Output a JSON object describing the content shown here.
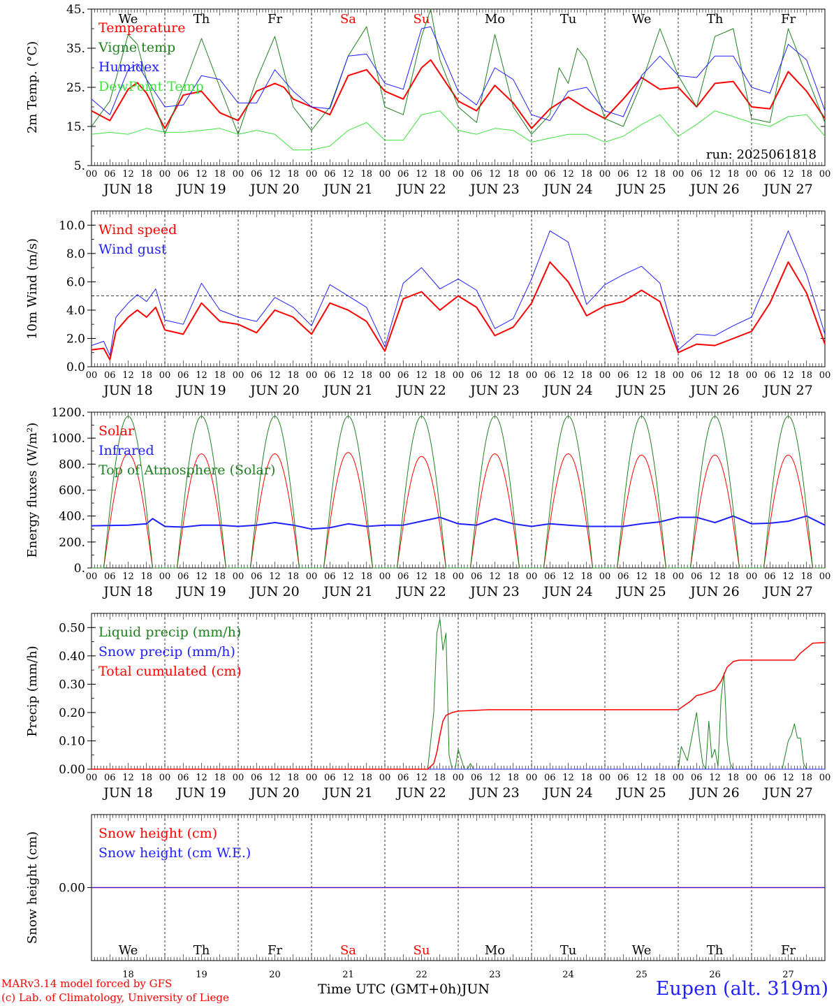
{
  "footer": {
    "credit_line1": "MARv3.14 model forced by GFS",
    "credit_line2": "(c) Lab. of Climatology, University of Liege",
    "x_title": "Time UTC (GMT+0h)",
    "x_title_month": "JUN",
    "station": "Eupen (alt. 319m)"
  },
  "chart_data": [
    {
      "id": "temperature",
      "type": "line",
      "ylabel": "2m Temp. (°C)",
      "ylim": [
        5,
        45
      ],
      "yticks": [
        5,
        15,
        25,
        35,
        45
      ],
      "ytick_labels": [
        "5.",
        "15.",
        "25.",
        "35.",
        "45."
      ],
      "weekday_labels": [
        "We",
        "Th",
        "Fr",
        "Sa",
        "Su",
        "Mo",
        "Tu",
        "We",
        "Th",
        "Fr"
      ],
      "weekday_colors": [
        "#000000",
        "#000000",
        "#000000",
        "#ff0000",
        "#ff0000",
        "#000000",
        "#000000",
        "#000000",
        "#000000",
        "#000000"
      ],
      "run_label": "run: 2025061818",
      "x_unit": "hours since JUN 18 00 UTC",
      "series": [
        {
          "name": "Temperature",
          "color": "#ff0000",
          "width": 2,
          "x": [
            0,
            6,
            12,
            15,
            18,
            24,
            30,
            36,
            42,
            48,
            54,
            60,
            63,
            66,
            72,
            78,
            84,
            90,
            96,
            102,
            108,
            111,
            114,
            120,
            126,
            132,
            138,
            144,
            150,
            156,
            162,
            168,
            174,
            180,
            186,
            192,
            198,
            204,
            210,
            216,
            222,
            228,
            234,
            240
          ],
          "y": [
            19,
            16.5,
            24.5,
            26.2,
            23.5,
            14.5,
            23,
            24,
            18.5,
            16.5,
            24,
            26,
            25,
            22,
            20,
            18,
            28,
            29.5,
            24,
            22,
            30,
            32,
            28.5,
            21.5,
            19,
            25.5,
            21,
            14.5,
            19.5,
            22.5,
            19.5,
            17,
            22,
            27.5,
            24.5,
            25,
            20,
            26,
            26.5,
            20,
            19.5,
            29,
            24,
            17
          ]
        },
        {
          "name": "Vigne temp",
          "color": "#208020",
          "width": 1,
          "x": [
            0,
            6,
            12,
            15,
            18,
            24,
            30,
            36,
            42,
            48,
            54,
            60,
            66,
            72,
            78,
            84,
            90,
            96,
            102,
            108,
            111,
            114,
            120,
            126,
            132,
            138,
            144,
            150,
            153,
            156,
            159,
            162,
            168,
            174,
            180,
            186,
            192,
            198,
            204,
            210,
            216,
            222,
            228,
            234,
            240
          ],
          "y": [
            15,
            21.5,
            38.5,
            36,
            27,
            13,
            25,
            37.5,
            25,
            13,
            27,
            38,
            20,
            14,
            20,
            33,
            40.5,
            20,
            18,
            38,
            45,
            32,
            20,
            16,
            38.5,
            20,
            13,
            18,
            30,
            26,
            35,
            32,
            17,
            15,
            26,
            40,
            28,
            20,
            38,
            40,
            17,
            16,
            40,
            28,
            16
          ]
        },
        {
          "name": "Humidex",
          "color": "#2020ff",
          "width": 1,
          "x": [
            0,
            6,
            12,
            15,
            18,
            24,
            30,
            36,
            42,
            48,
            54,
            60,
            66,
            72,
            78,
            84,
            90,
            96,
            102,
            108,
            111,
            114,
            120,
            126,
            132,
            138,
            144,
            150,
            156,
            162,
            168,
            174,
            180,
            186,
            192,
            198,
            204,
            210,
            216,
            222,
            228,
            234,
            240
          ],
          "y": [
            22,
            18,
            29.5,
            31,
            27,
            20,
            20.5,
            28,
            27,
            21,
            21,
            29.5,
            24,
            20,
            19.5,
            33,
            33.5,
            26,
            24.5,
            40,
            40.5,
            35,
            24,
            20.5,
            30,
            27,
            18,
            16.5,
            24,
            25,
            19,
            17.5,
            28,
            33,
            28,
            27.5,
            33,
            33,
            25,
            23.5,
            36,
            32,
            19
          ]
        },
        {
          "name": "DewPoint Temp",
          "color": "#40e040",
          "width": 1,
          "x": [
            0,
            6,
            12,
            18,
            24,
            30,
            36,
            42,
            48,
            54,
            60,
            66,
            72,
            78,
            84,
            90,
            96,
            102,
            108,
            114,
            120,
            126,
            132,
            138,
            144,
            150,
            156,
            162,
            168,
            174,
            180,
            186,
            192,
            198,
            204,
            210,
            216,
            222,
            228,
            234,
            240
          ],
          "y": [
            13,
            13.5,
            13,
            14.5,
            13.5,
            13.5,
            14,
            14.5,
            13,
            14,
            13,
            9,
            9,
            10,
            14,
            16,
            11.5,
            11.5,
            18,
            19,
            14,
            13,
            14.5,
            14,
            11,
            12,
            13,
            13,
            11,
            12.5,
            15.5,
            18,
            12.5,
            15.5,
            19,
            17.5,
            16,
            15,
            17.5,
            18,
            12.5
          ]
        }
      ]
    },
    {
      "id": "wind",
      "type": "line",
      "ylabel": "10m Wind (m/s)",
      "ylim": [
        0,
        11
      ],
      "yticks": [
        0,
        2,
        4,
        6,
        8,
        10
      ],
      "ytick_labels": [
        "0.0",
        "2.0",
        "4.0",
        "6.0",
        "8.0",
        "10.0"
      ],
      "hline": 5,
      "x_unit": "hours since JUN 18 00 UTC",
      "series": [
        {
          "name": "Wind speed",
          "color": "#ff0000",
          "width": 2,
          "x": [
            0,
            4,
            6,
            8,
            12,
            15,
            18,
            21,
            24,
            30,
            36,
            42,
            48,
            54,
            60,
            66,
            72,
            78,
            84,
            90,
            96,
            102,
            108,
            114,
            120,
            126,
            132,
            138,
            144,
            150,
            156,
            162,
            168,
            174,
            180,
            186,
            192,
            198,
            204,
            210,
            216,
            222,
            228,
            234,
            240
          ],
          "y": [
            1.2,
            1.3,
            0.5,
            2.5,
            3.5,
            4,
            3.5,
            4.2,
            2.6,
            2.3,
            4.5,
            3.2,
            3,
            2.4,
            4,
            3.5,
            2.3,
            4.5,
            4,
            3.2,
            1.1,
            4.8,
            5.3,
            4,
            5,
            4.2,
            2.2,
            2.8,
            4.5,
            7.4,
            6,
            3.6,
            4.3,
            4.6,
            5.4,
            4.6,
            1,
            1.6,
            1.5,
            2,
            2.5,
            4.5,
            7.4,
            5.2,
            1.6
          ]
        },
        {
          "name": "Wind gust",
          "color": "#2020ff",
          "width": 1,
          "x": [
            0,
            4,
            6,
            8,
            12,
            15,
            18,
            21,
            24,
            30,
            36,
            42,
            48,
            54,
            60,
            66,
            72,
            78,
            84,
            90,
            96,
            102,
            108,
            114,
            120,
            126,
            132,
            138,
            144,
            150,
            156,
            162,
            168,
            174,
            180,
            186,
            192,
            198,
            204,
            210,
            216,
            222,
            228,
            234,
            240
          ],
          "y": [
            1.5,
            1.8,
            0.8,
            3.5,
            4.5,
            5.1,
            4.6,
            5.5,
            3.3,
            3,
            5.9,
            4,
            3.5,
            3.2,
            4.9,
            4.2,
            2.9,
            5.8,
            5,
            4.2,
            1.4,
            5.9,
            7,
            5.5,
            6.2,
            5.4,
            2.7,
            3.4,
            6.2,
            9.6,
            8.8,
            4.4,
            5.8,
            6.5,
            7.1,
            5.9,
            1.2,
            2.3,
            2.2,
            2.9,
            3.5,
            6.5,
            9.6,
            6.5,
            2.3
          ]
        }
      ]
    },
    {
      "id": "energy",
      "type": "line",
      "ylabel": "Energy fluxes (W/m²)",
      "ylim": [
        0,
        1200
      ],
      "yticks": [
        0,
        200,
        400,
        600,
        800,
        1000,
        1200
      ],
      "ytick_labels": [
        "0.",
        "200.",
        "400.",
        "600.",
        "800.",
        "1000.",
        "1200."
      ],
      "x_unit": "hours since JUN 18 00 UTC",
      "diurnal_peak_hour": 12,
      "diurnal_half_width_hours": 8,
      "series": [
        {
          "name": "Solar",
          "color": "#ff0000",
          "width": 1,
          "daily_peaks": [
            880,
            880,
            880,
            890,
            860,
            880,
            880,
            870,
            870,
            870
          ]
        },
        {
          "name": "Infrared",
          "color": "#2020ff",
          "width": 2,
          "x": [
            0,
            12,
            18,
            20,
            24,
            30,
            36,
            42,
            48,
            54,
            60,
            66,
            72,
            78,
            84,
            90,
            96,
            102,
            108,
            114,
            120,
            126,
            132,
            138,
            144,
            150,
            156,
            162,
            168,
            174,
            180,
            186,
            192,
            198,
            204,
            210,
            216,
            222,
            228,
            234,
            240
          ],
          "y": [
            325,
            330,
            340,
            380,
            320,
            315,
            330,
            330,
            320,
            330,
            350,
            330,
            300,
            310,
            340,
            320,
            330,
            330,
            360,
            390,
            340,
            330,
            380,
            340,
            320,
            340,
            330,
            320,
            320,
            320,
            340,
            355,
            390,
            390,
            350,
            400,
            340,
            345,
            360,
            400,
            330
          ]
        },
        {
          "name": "Top of Atmosphere (Solar)",
          "color": "#208020",
          "width": 1,
          "daily_peaks": [
            1170,
            1170,
            1170,
            1170,
            1170,
            1170,
            1170,
            1170,
            1170,
            1170
          ]
        }
      ]
    },
    {
      "id": "precip",
      "type": "line",
      "ylabel": "Precip (mm/h)",
      "ylim": [
        0,
        0.55
      ],
      "yticks": [
        0,
        0.1,
        0.2,
        0.3,
        0.4,
        0.5
      ],
      "ytick_labels": [
        "0.00",
        "0.10",
        "0.20",
        "0.30",
        "0.40",
        "0.50"
      ],
      "x_unit": "hours since JUN 18 00 UTC",
      "series": [
        {
          "name": "Liquid precip (mm/h)",
          "color": "#208020",
          "width": 1,
          "x": [
            0,
            110,
            112,
            113,
            114,
            115,
            116,
            117,
            118,
            119,
            120,
            122,
            123,
            124,
            125,
            127,
            140,
            180,
            192,
            193,
            195,
            198,
            199,
            200,
            201,
            202,
            203,
            204,
            205,
            206,
            207,
            208,
            209,
            210,
            211,
            212,
            214,
            226,
            228,
            229,
            230,
            231,
            232,
            233,
            234,
            240
          ],
          "y": [
            0,
            0,
            0.2,
            0.48,
            0.53,
            0.42,
            0.48,
            0.05,
            0,
            0,
            0.07,
            0,
            0,
            0.02,
            0,
            0,
            0,
            0,
            0,
            0.08,
            0.03,
            0.2,
            0.1,
            0.02,
            0,
            0.17,
            0.04,
            0.07,
            0.01,
            0.25,
            0.34,
            0.1,
            0.02,
            0,
            0,
            0,
            0,
            0,
            0.1,
            0.12,
            0.16,
            0.11,
            0.11,
            0.02,
            0,
            0
          ]
        },
        {
          "name": "Snow precip (mm/h)",
          "color": "#2020ff",
          "width": 1,
          "x": [
            0,
            240
          ],
          "y": [
            0,
            0
          ]
        },
        {
          "name": "Total cumulated (cm)",
          "color": "#ff0000",
          "width": 1.5,
          "x": [
            0,
            110,
            112,
            113,
            114,
            115,
            116,
            117,
            118,
            120,
            124,
            130,
            192,
            194,
            196,
            198,
            200,
            204,
            206,
            208,
            210,
            212,
            230,
            232,
            236,
            240
          ],
          "y": [
            0,
            0,
            0.02,
            0.06,
            0.12,
            0.17,
            0.19,
            0.195,
            0.2,
            0.205,
            0.207,
            0.21,
            0.21,
            0.225,
            0.24,
            0.26,
            0.265,
            0.28,
            0.31,
            0.36,
            0.38,
            0.385,
            0.385,
            0.41,
            0.445,
            0.447
          ]
        }
      ]
    },
    {
      "id": "snow",
      "type": "line",
      "ylabel": "Snow height (cm)",
      "ylim": [
        -1,
        1
      ],
      "yticks": [
        0
      ],
      "ytick_labels": [
        "0.00"
      ],
      "weekday_labels": [
        "We",
        "Th",
        "Fr",
        "Sa",
        "Su",
        "Mo",
        "Tu",
        "We",
        "Th",
        "Fr"
      ],
      "weekday_colors": [
        "#000000",
        "#000000",
        "#000000",
        "#ff0000",
        "#ff0000",
        "#000000",
        "#000000",
        "#000000",
        "#000000",
        "#000000"
      ],
      "day_numbers": [
        "18",
        "19",
        "20",
        "21",
        "22",
        "23",
        "24",
        "25",
        "26",
        "27"
      ],
      "x_unit": "hours since JUN 18 00 UTC",
      "series": [
        {
          "name": "Snow height (cm)",
          "color": "#ff0000",
          "width": 1.5,
          "x": [
            0,
            240
          ],
          "y": [
            0,
            0
          ]
        },
        {
          "name": "Snow height (cm W.E.)",
          "color": "#2020ff",
          "width": 1,
          "x": [
            0,
            240
          ],
          "y": [
            0,
            0
          ]
        }
      ]
    }
  ],
  "x_axis": {
    "hour_labels": [
      "00",
      "06",
      "12",
      "18"
    ],
    "end_label": "00",
    "date_labels": [
      "JUN 18",
      "JUN 19",
      "JUN 20",
      "JUN 21",
      "JUN 22",
      "JUN 23",
      "JUN 24",
      "JUN 25",
      "JUN 26",
      "JUN 27"
    ]
  }
}
